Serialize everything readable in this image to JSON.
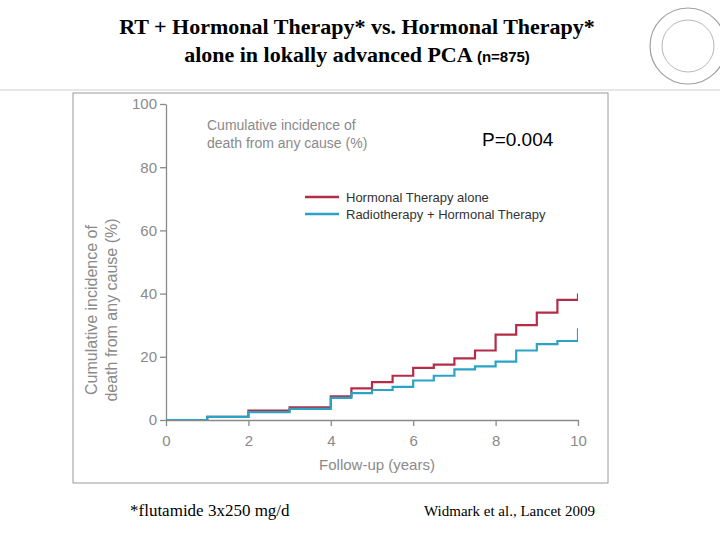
{
  "chart_data": {
    "type": "line",
    "line_style": "step",
    "title": [
      "RT + Hormonal Therapy* vs. Hormonal Therapy*",
      "alone in lokally advanced PCA"
    ],
    "subtitle": "(n=875)",
    "xlabel": "Follow-up (years)",
    "ylabel": [
      "Cumulative incidence of",
      "death from any cause (%)"
    ],
    "annotations": [
      [
        "Cumulative incidence of",
        "death from any cause (%)"
      ],
      "P=0.004",
      "*flutamide 3x250 mg/d",
      "Widmark et al., Lancet 2009"
    ],
    "x": [
      0,
      1,
      2,
      3,
      4,
      4.5,
      5,
      5.5,
      6,
      6.5,
      7,
      7.5,
      8,
      8.5,
      9,
      9.5,
      10
    ],
    "series": [
      {
        "name": "Hormonal Therapy alone",
        "color": "#b42c47",
        "values": [
          0,
          1,
          3,
          4,
          7.5,
          10,
          12,
          14,
          16.5,
          17.5,
          19.5,
          22,
          27,
          30,
          34,
          38,
          40
        ]
      },
      {
        "name": "Radiotherapy + Hormonal Therapy",
        "color": "#2aa3c6",
        "values": [
          0,
          1,
          2.5,
          3.5,
          7,
          8.5,
          9.5,
          10.5,
          12.5,
          14,
          16,
          17,
          18.5,
          22,
          24,
          25,
          29
        ]
      }
    ],
    "xlim": [
      0,
      10
    ],
    "xticks": [
      0,
      2,
      4,
      6,
      8,
      10
    ],
    "ylim": [
      0,
      100
    ],
    "yticks": [
      0,
      20,
      40,
      60,
      80,
      100
    ],
    "grid": false,
    "legend": "upper right"
  }
}
